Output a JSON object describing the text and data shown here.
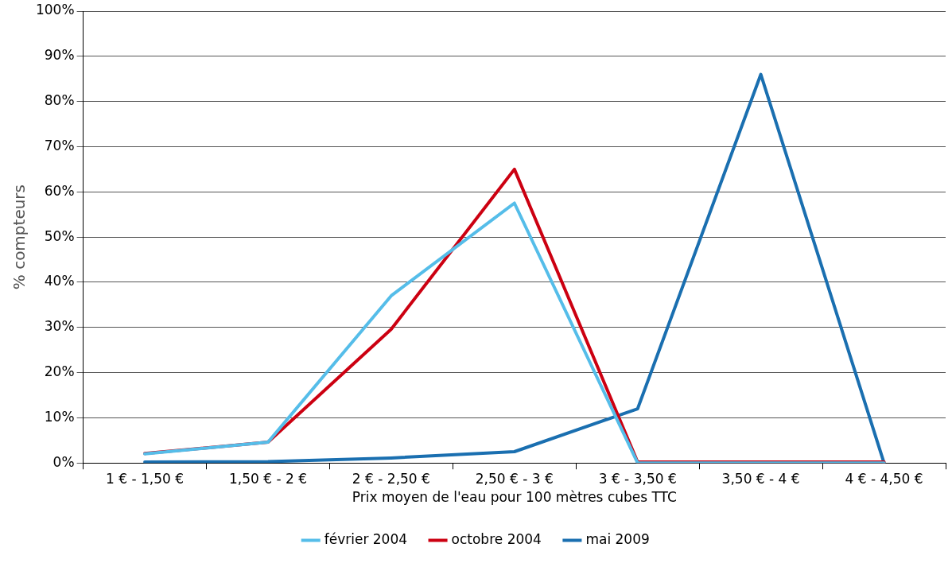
{
  "chart_data": {
    "type": "line",
    "xlabel": "Prix moyen de l'eau pour 100 mètres cubes TTC",
    "ylabel": "% compteurs",
    "categories": [
      "1 € - 1,50 €",
      "1,50 € - 2 €",
      "2 € - 2,50 €",
      "2,50 € - 3 €",
      "3 € - 3,50 €",
      "3,50 € - 4 €",
      "4 € - 4,50 €"
    ],
    "series": [
      {
        "name": "février 2004",
        "color": "#55bde9",
        "values": [
          2,
          4.6,
          37,
          57.5,
          0,
          0,
          0
        ]
      },
      {
        "name": "octobre 2004",
        "color": "#cc0011",
        "values": [
          2.1,
          4.6,
          29.6,
          65,
          0.2,
          0.2,
          0.2
        ]
      },
      {
        "name": "mai 2009",
        "color": "#1a6fb0",
        "values": [
          0.2,
          0.3,
          1.1,
          2.5,
          12,
          86,
          0
        ]
      }
    ],
    "ylim": [
      0,
      100
    ],
    "yticks": [
      {
        "value": 0,
        "label": "0%"
      },
      {
        "value": 10,
        "label": "10%"
      },
      {
        "value": 20,
        "label": "20%"
      },
      {
        "value": 30,
        "label": "30%"
      },
      {
        "value": 40,
        "label": "40%"
      },
      {
        "value": 50,
        "label": "50%"
      },
      {
        "value": 60,
        "label": "60%"
      },
      {
        "value": 70,
        "label": "70%"
      },
      {
        "value": 80,
        "label": "80%"
      },
      {
        "value": 90,
        "label": "90%"
      },
      {
        "value": 100,
        "label": "100%"
      }
    ],
    "grid": "y",
    "legend": "bottom",
    "marker": "none",
    "line_style": "solid"
  }
}
